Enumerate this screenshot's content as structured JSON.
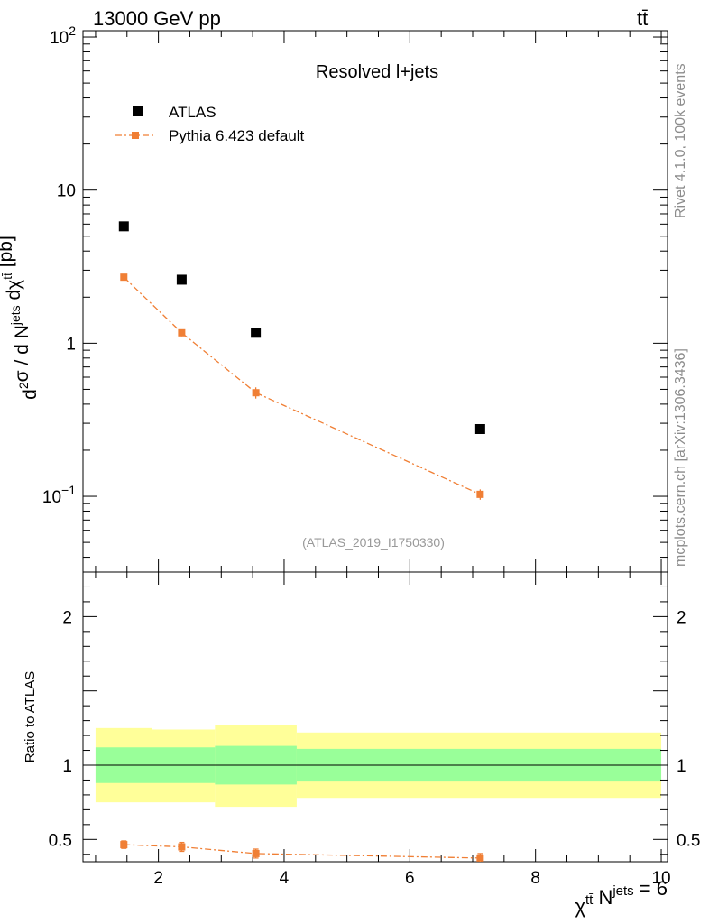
{
  "header": {
    "energy": "13000 GeV pp",
    "process": "tt̄"
  },
  "side": {
    "rivet": "Rivet 4.1.0,  100k events",
    "source": "mcplots.cern.ch [arXiv:1306.3436]"
  },
  "chart_data": [
    {
      "type": "scatter",
      "title": "Resolved l+jets",
      "analysis_tag": "(ATLAS_2019_I1750330)",
      "ylabel": "d²σ / d N^{jets} dχ^{tt̄} [pb]",
      "xlabel": "χ^{tt̄} N^{jets} = 6",
      "yscale": "log",
      "xlim": [
        0.8,
        10.1
      ],
      "ylim": [
        0.032,
        110
      ],
      "xticks": [
        "2",
        "4",
        "6",
        "8",
        "10"
      ],
      "yticks": [
        "10⁻¹",
        "1",
        "10",
        "10²"
      ],
      "legend_position": "top-left",
      "series": [
        {
          "name": "ATLAS",
          "color": "#000000",
          "marker": "square",
          "x": [
            1.45,
            2.37,
            3.55,
            7.12
          ],
          "y": [
            5.8,
            2.6,
            1.17,
            0.275
          ]
        },
        {
          "name": "Pythia 6.423 default",
          "color": "#f07f35",
          "marker": "square-line-dashdot",
          "x": [
            1.45,
            2.37,
            3.55,
            7.12
          ],
          "y": [
            2.7,
            1.17,
            0.475,
            0.103
          ],
          "yerr": [
            0.06,
            0.06,
            0.04,
            0.008
          ]
        }
      ]
    },
    {
      "type": "line",
      "ylabel": "Ratio to ATLAS",
      "xlim": [
        0.8,
        10.1
      ],
      "ylim": [
        0.35,
        2.3
      ],
      "yticks": [
        "0.5",
        "1",
        "2"
      ],
      "bins": [
        1.0,
        1.9,
        2.9,
        4.2,
        10.0
      ],
      "band_inner": [
        [
          0.88,
          1.12
        ],
        [
          0.88,
          1.12
        ],
        [
          0.87,
          1.13
        ],
        [
          0.89,
          1.11
        ]
      ],
      "band_outer": [
        [
          0.75,
          1.25
        ],
        [
          0.75,
          1.24
        ],
        [
          0.72,
          1.27
        ],
        [
          0.78,
          1.22
        ]
      ],
      "band_inner_color": "#99ff99",
      "band_outer_color": "#ffff99",
      "ratio_series": {
        "name": "Pythia 6.423 default",
        "color": "#f07f35",
        "x": [
          1.45,
          2.37,
          3.55,
          7.12
        ],
        "y": [
          0.465,
          0.45,
          0.405,
          0.375
        ],
        "yerr": [
          0.025,
          0.03,
          0.03,
          0.03
        ]
      }
    }
  ]
}
